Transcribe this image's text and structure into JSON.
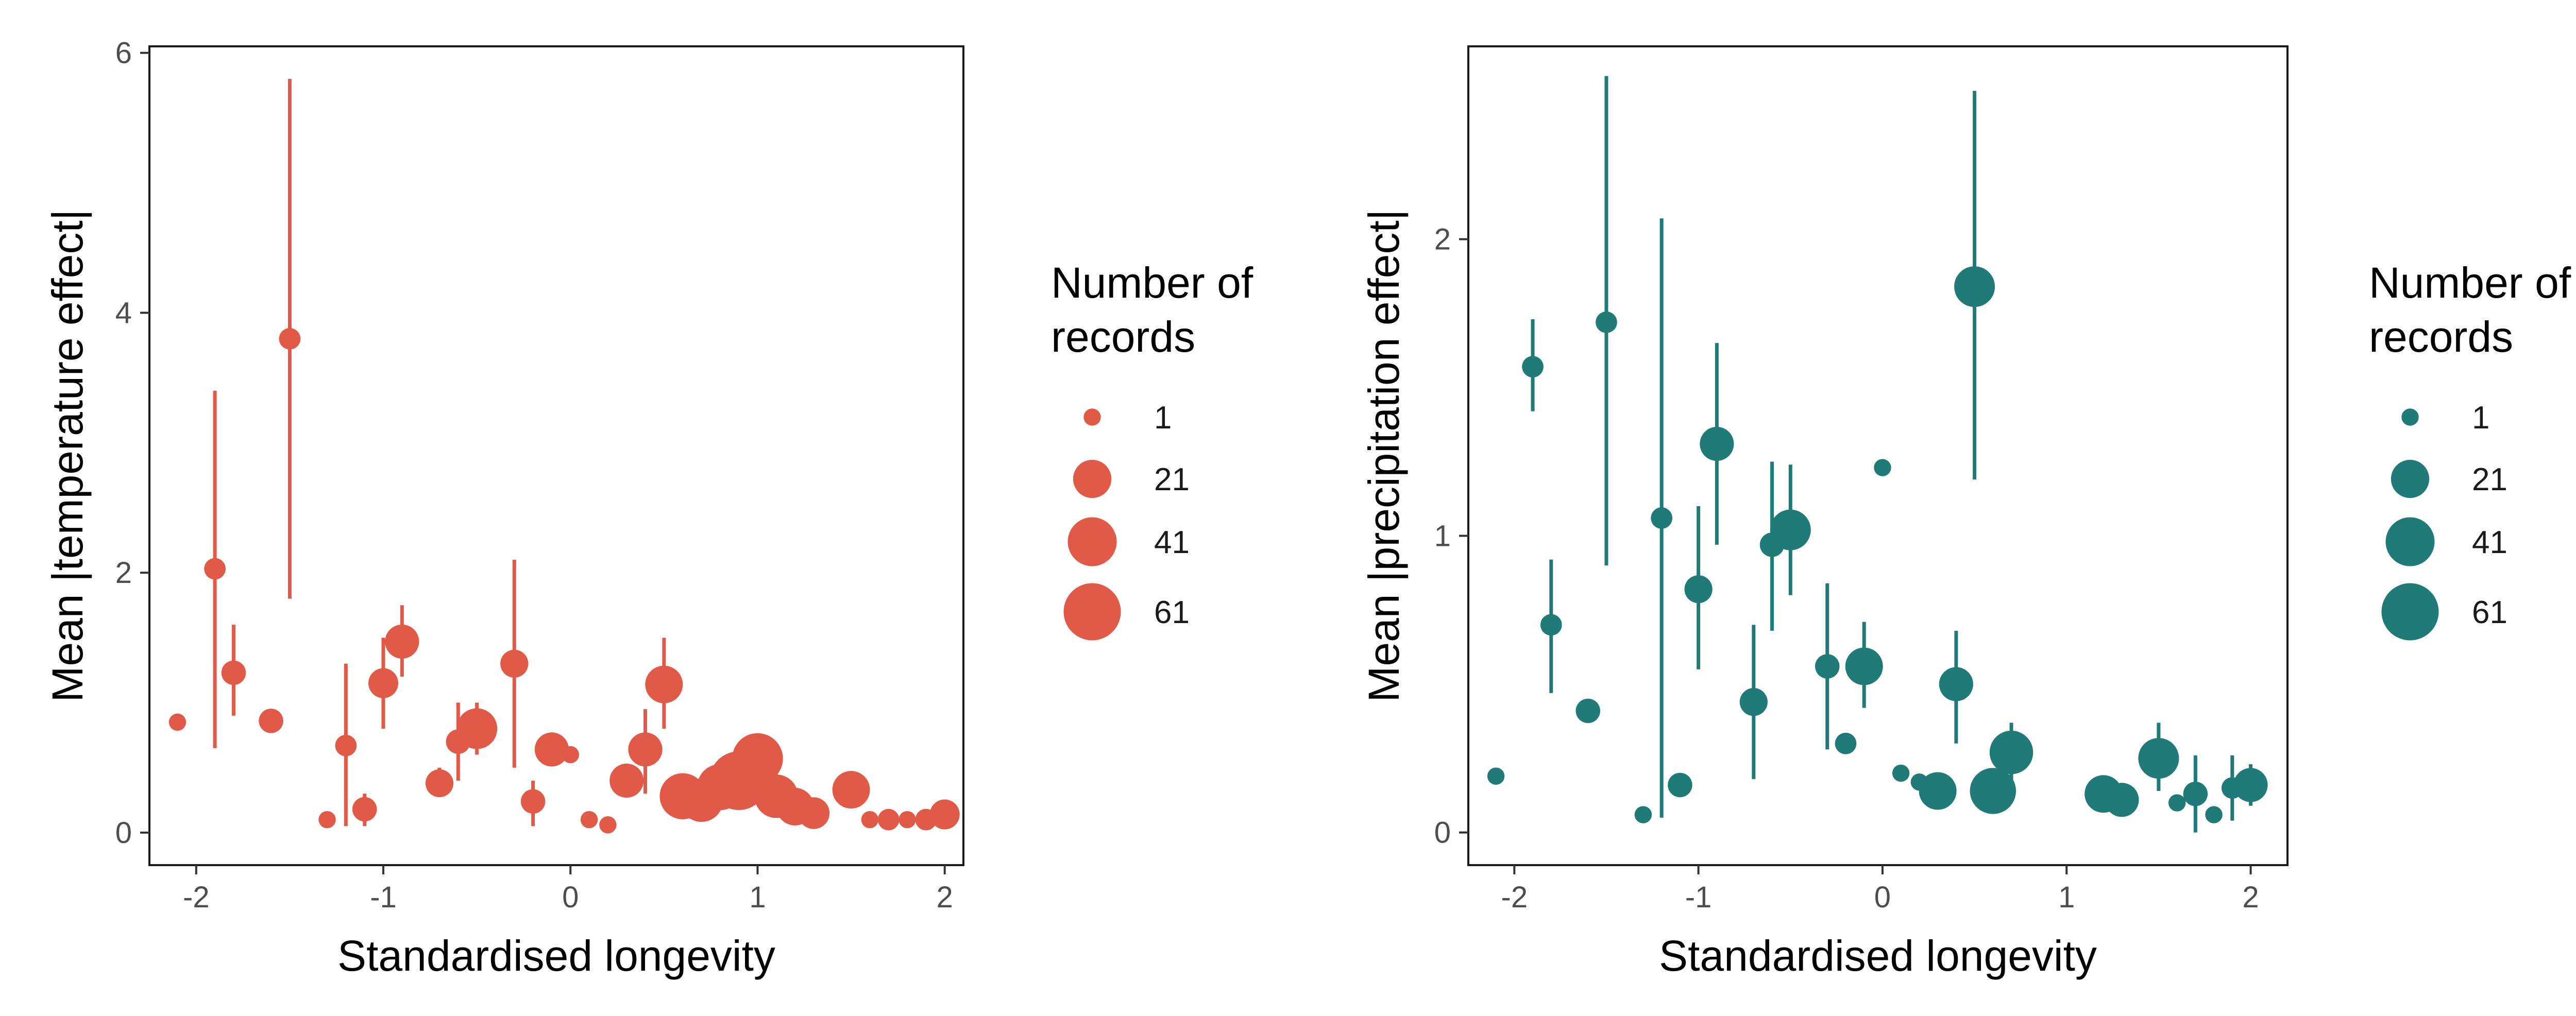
{
  "chart_data": [
    {
      "type": "scatter",
      "title": "",
      "xlabel": "Standardised longevity",
      "ylabel": "Mean |temperature effect|",
      "xlim": [
        -2.25,
        2.1
      ],
      "ylim": [
        -0.25,
        6.05
      ],
      "xticks": [
        -2,
        -1,
        0,
        1,
        2
      ],
      "yticks": [
        0,
        2,
        4,
        6
      ],
      "color": "#E05A47",
      "legend": {
        "title_line1": "Number of",
        "title_line2": "records",
        "sizes": [
          1,
          21,
          41,
          61
        ],
        "labels": [
          "1",
          "21",
          "41",
          "61"
        ]
      },
      "points": [
        {
          "x": -2.1,
          "y": 0.85,
          "ylo": 0.85,
          "yhi": 0.85,
          "n": 1
        },
        {
          "x": -1.9,
          "y": 2.03,
          "ylo": 0.65,
          "yhi": 3.4,
          "n": 3
        },
        {
          "x": -1.8,
          "y": 1.23,
          "ylo": 0.9,
          "yhi": 1.6,
          "n": 5
        },
        {
          "x": -1.6,
          "y": 0.86,
          "ylo": 0.78,
          "yhi": 0.95,
          "n": 5
        },
        {
          "x": -1.5,
          "y": 3.8,
          "ylo": 1.8,
          "yhi": 5.8,
          "n": 3
        },
        {
          "x": -1.3,
          "y": 0.1,
          "ylo": 0.1,
          "yhi": 0.1,
          "n": 1
        },
        {
          "x": -1.2,
          "y": 0.67,
          "ylo": 0.05,
          "yhi": 1.3,
          "n": 3
        },
        {
          "x": -1.1,
          "y": 0.18,
          "ylo": 0.05,
          "yhi": 0.3,
          "n": 5
        },
        {
          "x": -1.0,
          "y": 1.15,
          "ylo": 0.8,
          "yhi": 1.5,
          "n": 10
        },
        {
          "x": -0.9,
          "y": 1.47,
          "ylo": 1.2,
          "yhi": 1.75,
          "n": 15
        },
        {
          "x": -0.7,
          "y": 0.38,
          "ylo": 0.28,
          "yhi": 0.5,
          "n": 8
        },
        {
          "x": -0.6,
          "y": 0.7,
          "ylo": 0.4,
          "yhi": 1.0,
          "n": 5
        },
        {
          "x": -0.5,
          "y": 0.8,
          "ylo": 0.6,
          "yhi": 1.0,
          "n": 25
        },
        {
          "x": -0.3,
          "y": 1.3,
          "ylo": 0.5,
          "yhi": 2.1,
          "n": 8
        },
        {
          "x": -0.2,
          "y": 0.24,
          "ylo": 0.05,
          "yhi": 0.4,
          "n": 5
        },
        {
          "x": -0.1,
          "y": 0.64,
          "ylo": 0.64,
          "yhi": 0.64,
          "n": 15
        },
        {
          "x": 0.0,
          "y": 0.6,
          "ylo": 0.6,
          "yhi": 0.6,
          "n": 1
        },
        {
          "x": 0.1,
          "y": 0.1,
          "ylo": 0.1,
          "yhi": 0.1,
          "n": 1
        },
        {
          "x": 0.2,
          "y": 0.06,
          "ylo": 0.06,
          "yhi": 0.06,
          "n": 1
        },
        {
          "x": 0.3,
          "y": 0.4,
          "ylo": 0.4,
          "yhi": 0.4,
          "n": 15
        },
        {
          "x": 0.4,
          "y": 0.64,
          "ylo": 0.3,
          "yhi": 0.95,
          "n": 15
        },
        {
          "x": 0.5,
          "y": 1.14,
          "ylo": 0.8,
          "yhi": 1.5,
          "n": 20
        },
        {
          "x": 0.6,
          "y": 0.28,
          "ylo": 0.28,
          "yhi": 0.28,
          "n": 35
        },
        {
          "x": 0.7,
          "y": 0.25,
          "ylo": 0.25,
          "yhi": 0.25,
          "n": 30
        },
        {
          "x": 0.8,
          "y": 0.35,
          "ylo": 0.35,
          "yhi": 0.35,
          "n": 35
        },
        {
          "x": 0.9,
          "y": 0.4,
          "ylo": 0.4,
          "yhi": 0.4,
          "n": 65
        },
        {
          "x": 1.0,
          "y": 0.57,
          "ylo": 0.57,
          "yhi": 0.57,
          "n": 45
        },
        {
          "x": 1.1,
          "y": 0.28,
          "ylo": 0.28,
          "yhi": 0.28,
          "n": 30
        },
        {
          "x": 1.2,
          "y": 0.2,
          "ylo": 0.2,
          "yhi": 0.2,
          "n": 20
        },
        {
          "x": 1.3,
          "y": 0.15,
          "ylo": 0.15,
          "yhi": 0.15,
          "n": 12
        },
        {
          "x": 1.5,
          "y": 0.33,
          "ylo": 0.33,
          "yhi": 0.33,
          "n": 20
        },
        {
          "x": 1.6,
          "y": 0.1,
          "ylo": 0.1,
          "yhi": 0.1,
          "n": 1
        },
        {
          "x": 1.7,
          "y": 0.1,
          "ylo": 0.1,
          "yhi": 0.1,
          "n": 3
        },
        {
          "x": 1.8,
          "y": 0.1,
          "ylo": 0.1,
          "yhi": 0.1,
          "n": 1
        },
        {
          "x": 1.9,
          "y": 0.1,
          "ylo": 0.1,
          "yhi": 0.1,
          "n": 3
        },
        {
          "x": 2.0,
          "y": 0.14,
          "ylo": 0.14,
          "yhi": 0.14,
          "n": 10
        }
      ]
    },
    {
      "type": "scatter",
      "title": "",
      "xlabel": "Standardised longevity",
      "ylabel": "Mean |precipitation effect|",
      "xlim": [
        -2.25,
        2.2
      ],
      "ylim": [
        -0.11,
        2.65
      ],
      "xticks": [
        -2,
        -1,
        0,
        1,
        2
      ],
      "yticks": [
        0,
        1,
        2
      ],
      "color": "#1F7A78",
      "legend": {
        "title_line1": "Number of",
        "title_line2": "records",
        "sizes": [
          1,
          21,
          41,
          61
        ],
        "labels": [
          "1",
          "21",
          "41",
          "61"
        ]
      },
      "points": [
        {
          "x": -2.1,
          "y": 0.19,
          "ylo": 0.19,
          "yhi": 0.19,
          "n": 1
        },
        {
          "x": -1.9,
          "y": 1.57,
          "ylo": 1.42,
          "yhi": 1.73,
          "n": 3
        },
        {
          "x": -1.8,
          "y": 0.7,
          "ylo": 0.47,
          "yhi": 0.92,
          "n": 3
        },
        {
          "x": -1.6,
          "y": 0.41,
          "ylo": 0.37,
          "yhi": 0.45,
          "n": 5
        },
        {
          "x": -1.5,
          "y": 1.72,
          "ylo": 0.9,
          "yhi": 2.55,
          "n": 3
        },
        {
          "x": -1.3,
          "y": 0.06,
          "ylo": 0.06,
          "yhi": 0.06,
          "n": 1
        },
        {
          "x": -1.2,
          "y": 1.06,
          "ylo": 0.05,
          "yhi": 2.07,
          "n": 3
        },
        {
          "x": -1.1,
          "y": 0.16,
          "ylo": 0.16,
          "yhi": 0.16,
          "n": 5
        },
        {
          "x": -1.0,
          "y": 0.82,
          "ylo": 0.55,
          "yhi": 1.1,
          "n": 8
        },
        {
          "x": -0.9,
          "y": 1.31,
          "ylo": 0.97,
          "yhi": 1.65,
          "n": 15
        },
        {
          "x": -0.7,
          "y": 0.44,
          "ylo": 0.18,
          "yhi": 0.7,
          "n": 8
        },
        {
          "x": -0.6,
          "y": 0.97,
          "ylo": 0.68,
          "yhi": 1.25,
          "n": 5
        },
        {
          "x": -0.5,
          "y": 1.02,
          "ylo": 0.8,
          "yhi": 1.24,
          "n": 25
        },
        {
          "x": -0.3,
          "y": 0.56,
          "ylo": 0.28,
          "yhi": 0.84,
          "n": 5
        },
        {
          "x": -0.2,
          "y": 0.3,
          "ylo": 0.27,
          "yhi": 0.33,
          "n": 3
        },
        {
          "x": -0.1,
          "y": 0.56,
          "ylo": 0.42,
          "yhi": 0.71,
          "n": 20
        },
        {
          "x": 0.0,
          "y": 1.23,
          "ylo": 1.23,
          "yhi": 1.23,
          "n": 1
        },
        {
          "x": 0.1,
          "y": 0.2,
          "ylo": 0.2,
          "yhi": 0.2,
          "n": 1
        },
        {
          "x": 0.2,
          "y": 0.17,
          "ylo": 0.17,
          "yhi": 0.17,
          "n": 1
        },
        {
          "x": 0.3,
          "y": 0.14,
          "ylo": 0.14,
          "yhi": 0.14,
          "n": 20
        },
        {
          "x": 0.4,
          "y": 0.5,
          "ylo": 0.3,
          "yhi": 0.68,
          "n": 15
        },
        {
          "x": 0.5,
          "y": 1.84,
          "ylo": 1.19,
          "yhi": 2.5,
          "n": 25
        },
        {
          "x": 0.6,
          "y": 0.14,
          "ylo": 0.14,
          "yhi": 0.14,
          "n": 35
        },
        {
          "x": 0.7,
          "y": 0.27,
          "ylo": 0.17,
          "yhi": 0.37,
          "n": 30
        },
        {
          "x": 1.2,
          "y": 0.13,
          "ylo": 0.13,
          "yhi": 0.13,
          "n": 20
        },
        {
          "x": 1.3,
          "y": 0.11,
          "ylo": 0.11,
          "yhi": 0.11,
          "n": 15
        },
        {
          "x": 1.5,
          "y": 0.25,
          "ylo": 0.14,
          "yhi": 0.37,
          "n": 25
        },
        {
          "x": 1.6,
          "y": 0.1,
          "ylo": 0.1,
          "yhi": 0.1,
          "n": 1
        },
        {
          "x": 1.7,
          "y": 0.13,
          "ylo": 0.0,
          "yhi": 0.26,
          "n": 5
        },
        {
          "x": 1.8,
          "y": 0.06,
          "ylo": 0.06,
          "yhi": 0.06,
          "n": 1
        },
        {
          "x": 1.9,
          "y": 0.15,
          "ylo": 0.04,
          "yhi": 0.26,
          "n": 3
        },
        {
          "x": 2.0,
          "y": 0.16,
          "ylo": 0.09,
          "yhi": 0.23,
          "n": 15
        }
      ]
    }
  ]
}
